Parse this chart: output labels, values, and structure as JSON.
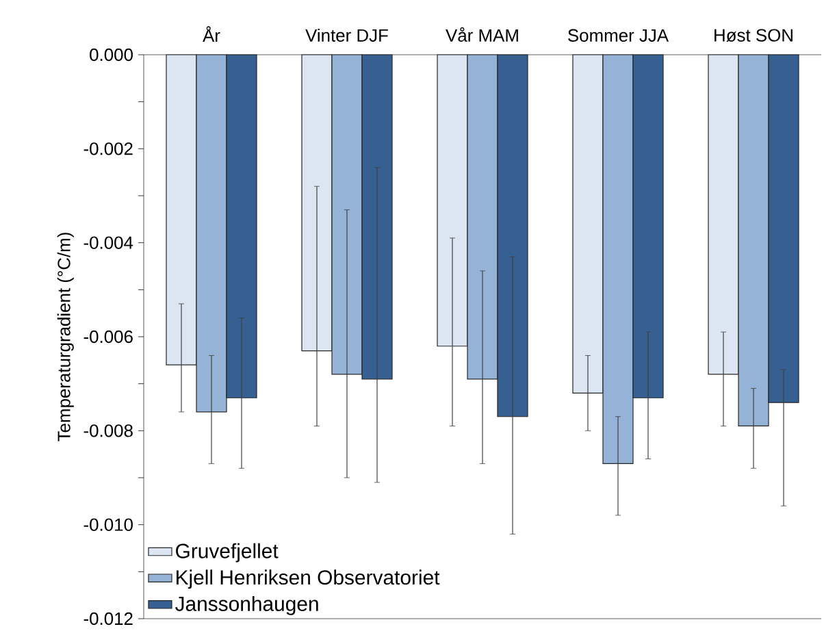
{
  "chart_data": {
    "type": "bar",
    "ylabel": "Temperaturgradient (°C/m)",
    "categories": [
      "År",
      "Vinter DJF",
      "Vår MAM",
      "Sommer JJA",
      "Høst SON"
    ],
    "series": [
      {
        "name": "Gruvefjellet",
        "color": "#dce6f2",
        "values": [
          -0.0066,
          -0.0063,
          -0.0062,
          -0.0072,
          -0.0068
        ],
        "errors": [
          [
            -0.0076,
            -0.0053
          ],
          [
            -0.0079,
            -0.0028
          ],
          [
            -0.0079,
            -0.0039
          ],
          [
            -0.008,
            -0.0064
          ],
          [
            -0.0079,
            -0.0059
          ]
        ]
      },
      {
        "name": "Kjell Henriksen Observatoriet",
        "color": "#95b3d7",
        "values": [
          -0.0076,
          -0.0068,
          -0.0069,
          -0.0087,
          -0.0079
        ],
        "errors": [
          [
            -0.0087,
            -0.0064
          ],
          [
            -0.009,
            -0.0033
          ],
          [
            -0.0087,
            -0.0046
          ],
          [
            -0.0098,
            -0.0077
          ],
          [
            -0.0088,
            -0.0071
          ]
        ]
      },
      {
        "name": "Janssonhaugen",
        "color": "#366092",
        "values": [
          -0.0073,
          -0.0069,
          -0.0077,
          -0.0073,
          -0.0074
        ],
        "errors": [
          [
            -0.0088,
            -0.0056
          ],
          [
            -0.0091,
            -0.0024
          ],
          [
            -0.0102,
            -0.0043
          ],
          [
            -0.0086,
            -0.0059
          ],
          [
            -0.0096,
            -0.0067
          ]
        ]
      }
    ],
    "ylim": [
      -0.012,
      0
    ],
    "yticks": [
      {
        "value": 0,
        "label": "0.000"
      },
      {
        "value": -0.001,
        "label": null
      },
      {
        "value": -0.002,
        "label": "-0.002"
      },
      {
        "value": -0.003,
        "label": null
      },
      {
        "value": -0.004,
        "label": "-0.004"
      },
      {
        "value": -0.005,
        "label": null
      },
      {
        "value": -0.006,
        "label": "-0.006"
      },
      {
        "value": -0.007,
        "label": null
      },
      {
        "value": -0.008,
        "label": "-0.008"
      },
      {
        "value": -0.009,
        "label": null
      },
      {
        "value": -0.01,
        "label": "-0.010"
      },
      {
        "value": -0.011,
        "label": null
      },
      {
        "value": -0.012,
        "label": "-0.012"
      }
    ],
    "legend": "bottom left"
  }
}
